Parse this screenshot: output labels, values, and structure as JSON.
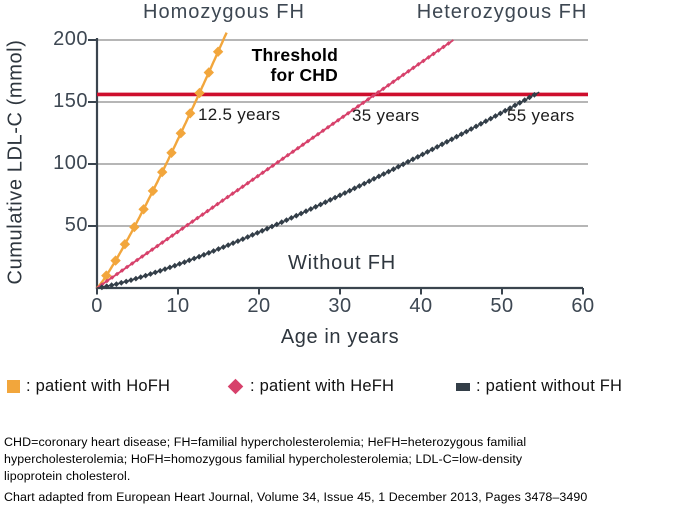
{
  "chart_data": {
    "type": "line",
    "title_left": "Homozygous FH",
    "title_right": "Heterozygous FH",
    "xlabel": "Age in years",
    "ylabel": "Cumulative LDL-C (mmol)",
    "xlim": [
      0,
      60
    ],
    "ylim": [
      0,
      200
    ],
    "x_ticks": [
      0,
      10,
      20,
      30,
      40,
      50,
      60
    ],
    "y_ticks": [
      50,
      100,
      150,
      200
    ],
    "grid": "horizontal gray lines at y ticks",
    "legend_position": "below chart",
    "colors": {
      "axis": "#3A444E",
      "grid": "#ABABAB",
      "threshold": "#CE0E2D",
      "hofh": "#F2A63C",
      "hefh": "#D7416B",
      "nofh": "#333E48"
    },
    "threshold": {
      "value": 155,
      "label_line1": "Threshold",
      "label_line2": "for CHD",
      "color": "#CE0E2D"
    },
    "without_fh_label": "Without FH",
    "series": [
      {
        "name": "patient with HoFH",
        "color": "#F2A63C",
        "marker": "diamond",
        "marker_half_size": 5.2,
        "marker_step_years": 1.15,
        "line_width": 2.4,
        "model": {
          "type": "power",
          "v_end": 206,
          "end_age": 16,
          "exponent": 1.15
        },
        "threshold_crossing_age": 12.5,
        "threshold_crossing_label": "12.5 years",
        "points": [
          [
            0,
            0
          ],
          [
            2,
            19
          ],
          [
            4,
            42
          ],
          [
            6,
            67
          ],
          [
            8,
            93
          ],
          [
            10,
            120
          ],
          [
            12,
            148
          ],
          [
            14,
            177
          ],
          [
            16,
            206
          ]
        ]
      },
      {
        "name": "patient with HeFH",
        "color": "#D7416B",
        "marker": "diamond",
        "marker_half_size": 2.3,
        "marker_step_years": 0.62,
        "line_width": 1.9,
        "model": {
          "type": "power",
          "v_end": 200,
          "end_age": 44,
          "exponent": 1
        },
        "threshold_crossing_age": 35,
        "threshold_crossing_label": "35 years",
        "points": [
          [
            0,
            0
          ],
          [
            10,
            45
          ],
          [
            20,
            91
          ],
          [
            30,
            136
          ],
          [
            40,
            182
          ],
          [
            44,
            200
          ]
        ]
      },
      {
        "name": "patient without FH",
        "color": "#333E48",
        "marker": "diamond",
        "marker_half_size": 2.9,
        "marker_step_years": 0.6,
        "line_width": 1.5,
        "model": {
          "type": "power",
          "v_end": 158,
          "end_age": 54.6,
          "exponent": 1.25
        },
        "threshold_crossing_age": 55,
        "threshold_crossing_label": "55 years",
        "points": [
          [
            0,
            0
          ],
          [
            10,
            19
          ],
          [
            20,
            44
          ],
          [
            30,
            74
          ],
          [
            40,
            105
          ],
          [
            50,
            139
          ],
          [
            55,
            157
          ]
        ]
      }
    ]
  },
  "legend": {
    "items": [
      {
        "swatch": "square",
        "color": "#F2A63C",
        "label": ": patient with HoFH"
      },
      {
        "swatch": "diamond",
        "color": "#D7416B",
        "label": ": patient with HeFH"
      },
      {
        "swatch": "dash",
        "color": "#333E48",
        "label": ": patient without FH"
      }
    ]
  },
  "footnotes": {
    "abbrev_lines": [
      "CHD=coronary heart disease; FH=familial hypercholesterolemia; HeFH=heterozygous familial",
      "hypercholesterolemia; HoFH=homozygous familial hypercholesterolemia; LDL-C=low-density",
      "lipoprotein cholesterol."
    ],
    "source": "Chart adapted from European Heart Journal, Volume 34, Issue 45, 1 December 2013, Pages 3478–3490"
  }
}
